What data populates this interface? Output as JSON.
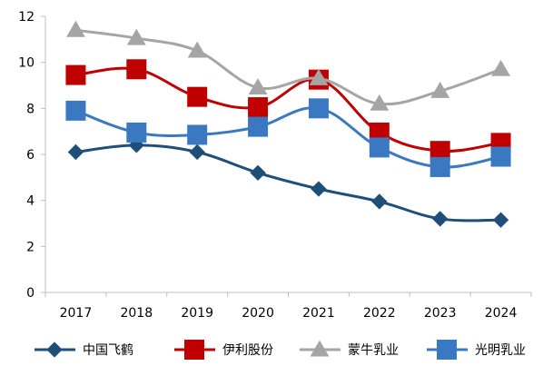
{
  "chart_data": {
    "type": "line",
    "categories": [
      "2017",
      "2018",
      "2019",
      "2020",
      "2021",
      "2022",
      "2023",
      "2024"
    ],
    "ylim": [
      0,
      12
    ],
    "yticks": [
      0,
      2,
      4,
      6,
      8,
      10,
      12
    ],
    "grid": false,
    "legend_position": "bottom",
    "series": [
      {
        "name": "中国飞鹤",
        "color": "#1F4E79",
        "marker": "diamond",
        "values": [
          6.1,
          6.4,
          6.1,
          5.2,
          4.5,
          3.95,
          3.2,
          3.15
        ]
      },
      {
        "name": "伊利股份",
        "color": "#C00000",
        "marker": "square",
        "values": [
          9.45,
          9.7,
          8.5,
          8.05,
          9.25,
          6.95,
          6.15,
          6.5
        ]
      },
      {
        "name": "蒙牛乳业",
        "color": "#A5A5A5",
        "marker": "triangle",
        "values": [
          11.4,
          11.05,
          10.5,
          8.9,
          9.3,
          8.2,
          8.75,
          9.7
        ]
      },
      {
        "name": "光明乳业",
        "color": "#3A78C2",
        "marker": "square",
        "values": [
          7.9,
          6.95,
          6.85,
          7.2,
          8.0,
          6.3,
          5.45,
          5.9
        ]
      }
    ]
  }
}
